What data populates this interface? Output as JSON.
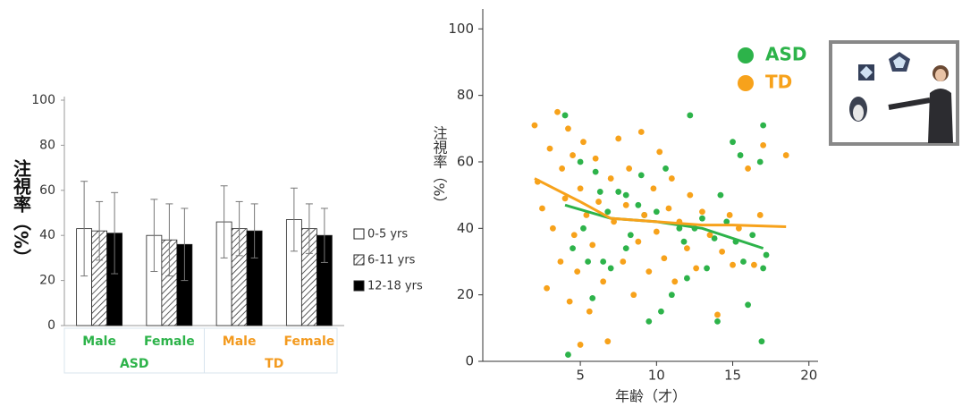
{
  "chart_data": [
    {
      "type": "bar",
      "ylabel": "注視率（%）",
      "categories": [
        "Male",
        "Female",
        "Male",
        "Female"
      ],
      "groups": [
        {
          "name": "ASD",
          "color": "#2db34a",
          "count": 2
        },
        {
          "name": "TD",
          "color": "#f39a1e",
          "count": 2
        }
      ],
      "series": [
        {
          "name": "0-5 yrs",
          "color": "#ffffff",
          "values": [
            43,
            40,
            46,
            47
          ],
          "errors": [
            21,
            16,
            16,
            14
          ]
        },
        {
          "name": "6-11 yrs",
          "color": "hatch",
          "values": [
            42,
            38,
            43,
            43
          ],
          "errors": [
            13,
            16,
            12,
            11
          ]
        },
        {
          "name": "12-18 yrs",
          "color": "#000000",
          "values": [
            41,
            36,
            42,
            40
          ],
          "errors": [
            18,
            16,
            12,
            12
          ]
        }
      ],
      "ylim": [
        0,
        100
      ],
      "yticks": [
        0,
        20,
        40,
        60,
        80,
        100
      ]
    },
    {
      "type": "scatter",
      "ylabel": "注視率（%）",
      "xlabel": "年齢（才）",
      "xlim": [
        -1.4,
        20.6
      ],
      "xticks": [
        5,
        10,
        15,
        20
      ],
      "ylim": [
        0,
        106
      ],
      "yticks": [
        0,
        20,
        40,
        60,
        80,
        100
      ],
      "series": [
        {
          "name": "ASD",
          "color": "#2db34a",
          "x": [
            4,
            4.2,
            4.5,
            5,
            5.2,
            5.5,
            5.8,
            6,
            6.3,
            6.8,
            7,
            7.5,
            8,
            8.3,
            8.8,
            9.2,
            9.5,
            10,
            10.3,
            10.6,
            11,
            11.5,
            12,
            12.2,
            12.5,
            13,
            13.3,
            13.8,
            14,
            14.2,
            14.6,
            15,
            15.2,
            15.5,
            15.7,
            16,
            16.3,
            16.8,
            16.9,
            17,
            17,
            17.2,
            8,
            6.5,
            9,
            11.8
          ],
          "y": [
            74,
            2,
            34,
            60,
            40,
            30,
            19,
            57,
            51,
            45,
            28,
            51,
            50,
            38,
            47,
            44,
            12,
            45,
            15,
            58,
            20,
            40,
            25,
            74,
            40,
            43,
            28,
            37,
            12,
            50,
            42,
            66,
            36,
            62,
            30,
            17,
            38,
            60,
            6,
            71,
            28,
            32,
            34,
            30,
            56,
            36
          ]
        },
        {
          "name": "TD",
          "color": "#f7a21b",
          "x": [
            2,
            2.2,
            2.5,
            2.8,
            3,
            3.2,
            3.5,
            3.7,
            3.8,
            4,
            4.2,
            4.3,
            4.5,
            4.6,
            4.8,
            5,
            5,
            5.2,
            5.4,
            5.6,
            5.8,
            6,
            6.2,
            6.5,
            6.8,
            7,
            7.2,
            7.5,
            7.8,
            8,
            8.2,
            8.5,
            8.8,
            9,
            9.2,
            9.5,
            9.8,
            10,
            10.2,
            10.5,
            10.8,
            11,
            11.2,
            11.5,
            12,
            12.2,
            12.6,
            13,
            13.5,
            14,
            14.3,
            14.8,
            15,
            15.4,
            16,
            16.4,
            17,
            18.5,
            16.8
          ],
          "y": [
            71,
            54,
            46,
            22,
            64,
            40,
            75,
            30,
            58,
            49,
            70,
            18,
            62,
            38,
            27,
            52,
            5,
            66,
            44,
            15,
            35,
            61,
            48,
            24,
            6,
            55,
            42,
            67,
            30,
            47,
            58,
            20,
            36,
            69,
            44,
            27,
            52,
            39,
            63,
            31,
            46,
            55,
            24,
            42,
            34,
            50,
            28,
            45,
            38,
            14,
            33,
            44,
            29,
            40,
            58,
            29,
            65,
            62,
            44
          ]
        }
      ],
      "trend_lines": [
        {
          "color": "#2db34a",
          "x": [
            4,
            7,
            10,
            13,
            17
          ],
          "y": [
            47,
            43,
            42,
            40,
            34
          ]
        },
        {
          "color": "#f7a21b",
          "x": [
            2,
            5,
            7,
            10,
            13,
            15,
            18.5
          ],
          "y": [
            55,
            48,
            43,
            42,
            41,
            41,
            40.5
          ]
        }
      ]
    }
  ]
}
